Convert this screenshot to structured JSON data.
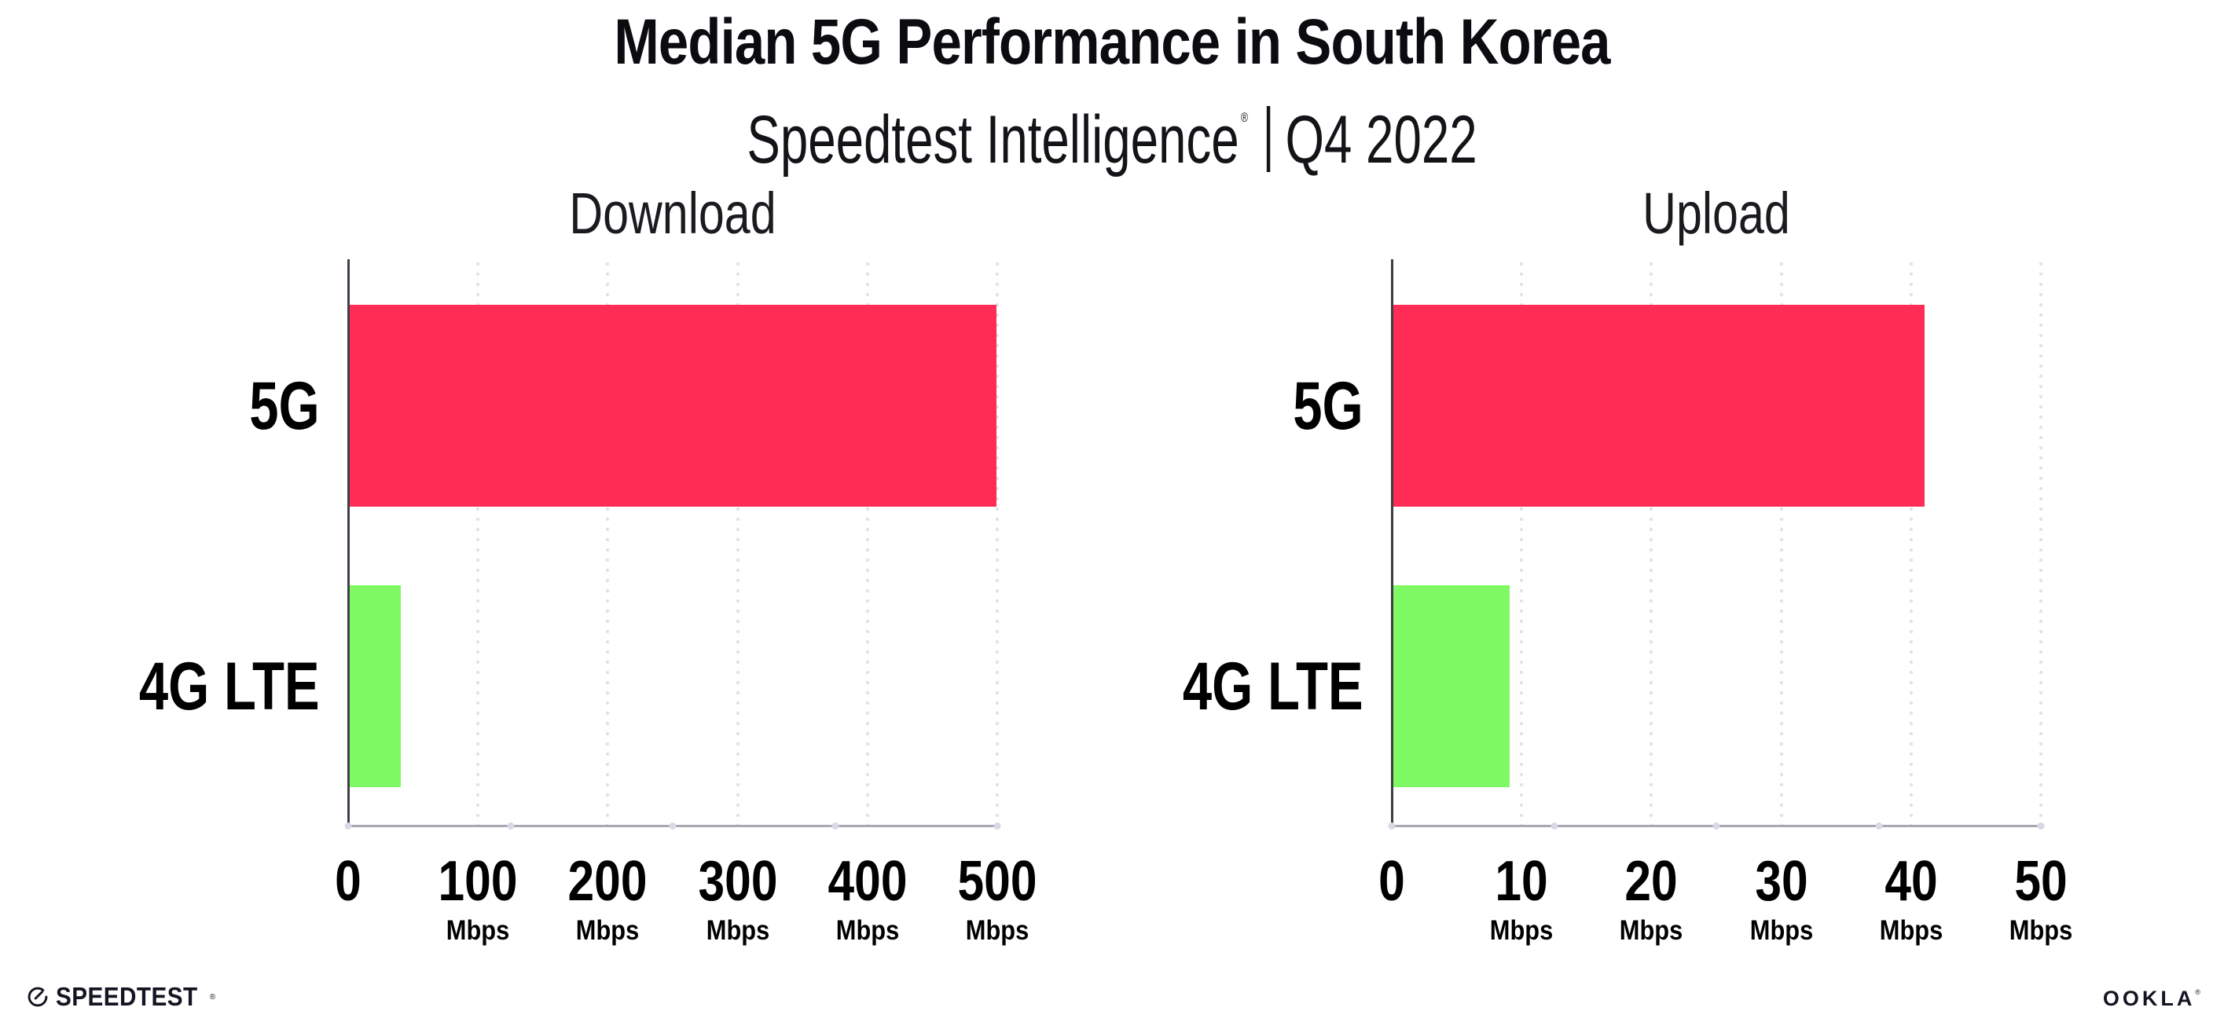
{
  "header": {
    "title": "Median 5G Performance in South Korea",
    "subtitle_brand": "Speedtest Intelligence",
    "subtitle_reg": "®",
    "subtitle_sep": "",
    "subtitle_period": "Q4 2022"
  },
  "chart_data": [
    {
      "type": "bar",
      "orientation": "horizontal",
      "title": "Download",
      "categories": [
        "5G",
        "4G LTE"
      ],
      "values": [
        499,
        40
      ],
      "unit": "Mbps",
      "xlabel": "",
      "ylabel": "",
      "xlim": [
        0,
        500
      ],
      "xticks": [
        0,
        100,
        200,
        300,
        400,
        500
      ],
      "bar_colors": [
        "#FF2D55",
        "#80FA64"
      ],
      "grid": "dotted vertical gridline at each non-zero tick",
      "legend": "none"
    },
    {
      "type": "bar",
      "orientation": "horizontal",
      "title": "Upload",
      "categories": [
        "5G",
        "4G LTE"
      ],
      "values": [
        41,
        9
      ],
      "unit": "Mbps",
      "xlabel": "",
      "ylabel": "",
      "xlim": [
        0,
        50
      ],
      "xticks": [
        0,
        10,
        20,
        30,
        40,
        50
      ],
      "bar_colors": [
        "#FF2D55",
        "#80FA64"
      ],
      "grid": "dotted vertical gridline at each non-zero tick",
      "legend": "none"
    }
  ],
  "footer": {
    "speedtest_logo_text": "SPEEDTEST",
    "speedtest_reg": "®",
    "ookla_logo_text": "OOKLA",
    "ookla_reg": "®"
  },
  "colors": {
    "bar_5g": "#FF2D55",
    "bar_4g_lte": "#80FA64",
    "grid_dot": "#E2E2EE",
    "x_axis_line": "#A8A8B2",
    "y_axis_line": "#3E3E48",
    "axis_tick_dot": "#D8D8E6",
    "text": "#000000",
    "brand_dark": "#141522",
    "background": "#FFFFFF"
  }
}
